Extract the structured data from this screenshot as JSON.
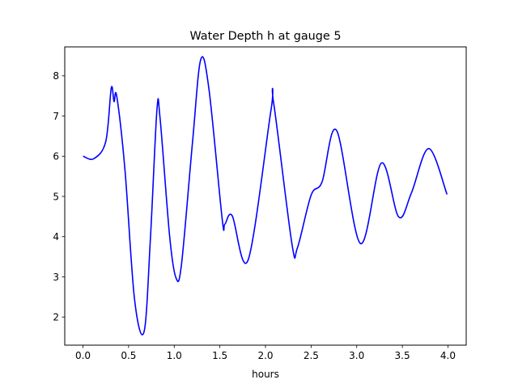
{
  "chart_data": {
    "type": "line",
    "title": "Water Depth h at gauge 5",
    "xlabel": "hours",
    "ylabel": "",
    "xlim": [
      -0.2,
      4.2
    ],
    "ylim": [
      1.3,
      8.72
    ],
    "xticks": [
      "0.0",
      "0.5",
      "1.0",
      "1.5",
      "2.0",
      "2.5",
      "3.0",
      "3.5",
      "4.0"
    ],
    "yticks": [
      "2",
      "3",
      "4",
      "5",
      "6",
      "7",
      "8"
    ],
    "grid": false,
    "series": [
      {
        "name": "h",
        "color": "#0000ff",
        "x": [
          0.0,
          0.12,
          0.25,
          0.31,
          0.34,
          0.37,
          0.46,
          0.565,
          0.67,
          0.74,
          0.81,
          0.845,
          0.95,
          1.02,
          1.08,
          1.2,
          1.29,
          1.38,
          1.525,
          1.555,
          1.635,
          1.81,
          2.06,
          2.09,
          2.29,
          2.35,
          2.5,
          2.62,
          2.78,
          3.04,
          3.27,
          3.46,
          3.6,
          3.79,
          3.99
        ],
        "y": [
          6.0,
          5.94,
          6.37,
          7.7,
          7.36,
          7.49,
          5.66,
          2.44,
          1.64,
          4.0,
          7.14,
          6.94,
          4.0,
          2.97,
          3.32,
          6.34,
          8.4,
          7.68,
          4.45,
          4.31,
          4.52,
          3.42,
          7.14,
          7.32,
          3.82,
          3.72,
          5.03,
          5.36,
          6.64,
          3.83,
          5.83,
          4.49,
          5.09,
          6.19,
          5.05
        ]
      }
    ]
  }
}
